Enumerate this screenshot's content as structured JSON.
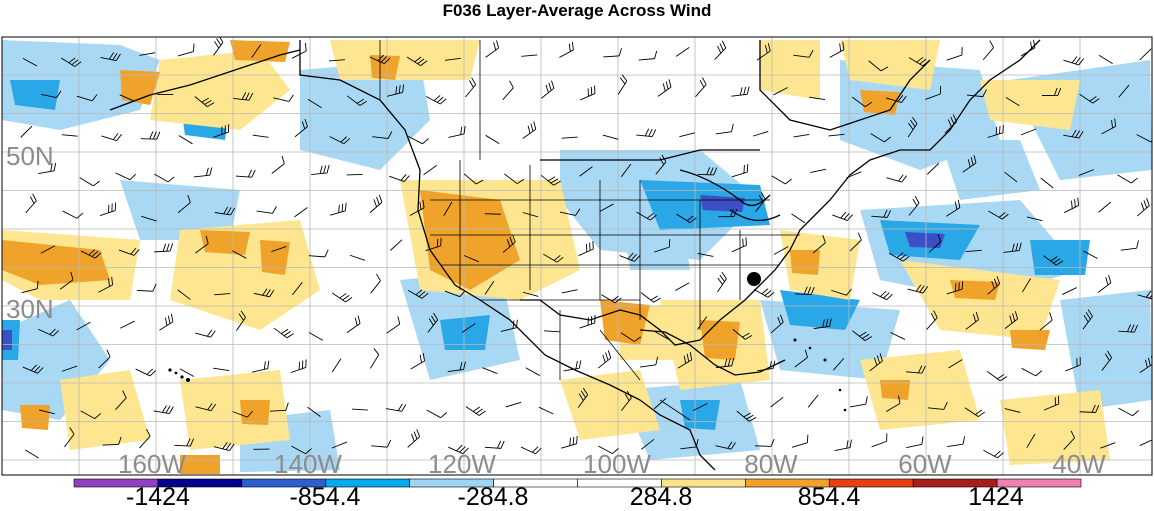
{
  "title": "F036 Layer-Average Across Wind",
  "latitude_labels": [
    "50N",
    "30N"
  ],
  "longitude_labels": [
    "160W",
    "140W",
    "120W",
    "100W",
    "80W",
    "60W",
    "40W"
  ],
  "colorbar": {
    "labels": [
      "-1424",
      "-854.4",
      "-284.8",
      "284.8",
      "854.4",
      "1424"
    ],
    "colors": [
      "#8e3fc4",
      "#00008f",
      "#2f5fcf",
      "#00aaee",
      "#9fd4f5",
      "#ffffff",
      "#ffffff",
      "#fde28c",
      "#f2a22a",
      "#e8400f",
      "#a81e1e",
      "#f27fb2"
    ]
  },
  "fill_colors": {
    "light_blue": "#a9d8f5",
    "mid_blue": "#2aa7e6",
    "dark_blue": "#3c4fc4",
    "light_yellow": "#fde68f",
    "orange": "#f0a32a"
  },
  "marker": {
    "lat": 33.0,
    "lon": -82.0,
    "color": "#000000"
  }
}
